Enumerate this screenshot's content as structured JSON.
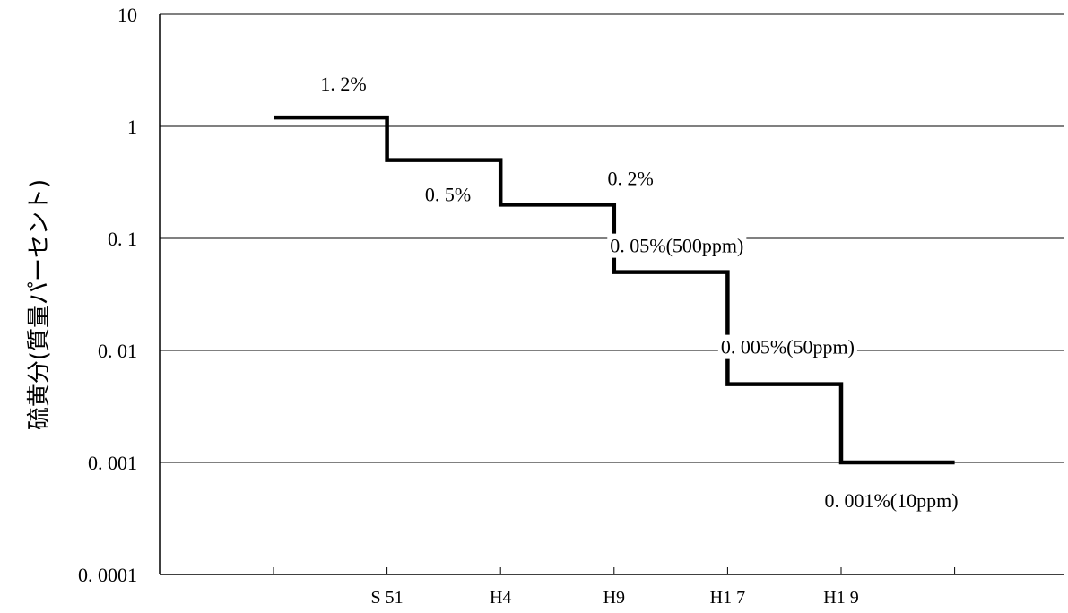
{
  "chart_data": {
    "type": "line",
    "step": "post",
    "title": "",
    "xlabel": "",
    "ylabel": "硫黄分(質量パーセント)",
    "yscale": "log",
    "ylim": [
      0.0001,
      10
    ],
    "y_ticks": [
      {
        "value": 10,
        "label": "10"
      },
      {
        "value": 1,
        "label": "1"
      },
      {
        "value": 0.1,
        "label": "0. 1"
      },
      {
        "value": 0.01,
        "label": "0. 01"
      },
      {
        "value": 0.001,
        "label": "0. 001"
      },
      {
        "value": 0.0001,
        "label": "0. 0001"
      }
    ],
    "grid": {
      "horizontal": true,
      "vertical": false
    },
    "categories": [
      "",
      "S51",
      "H4",
      "H9",
      "H17",
      "H19",
      ""
    ],
    "x_tick_labels": [
      "",
      "S 51",
      "H4",
      "H9",
      "H1 7",
      "H1 9",
      ""
    ],
    "series": [
      {
        "values": [
          1.2,
          0.5,
          0.2,
          0.05,
          0.005,
          0.001,
          0.001
        ],
        "color": "#000000"
      }
    ],
    "annotations": [
      {
        "text": "1. 2%",
        "value": 1.2
      },
      {
        "text": "0. 5%",
        "value": 0.5
      },
      {
        "text": "0. 2%",
        "value": 0.2
      },
      {
        "text": "0. 05%(500ppm)",
        "value": 0.05
      },
      {
        "text": "0. 005%(50ppm)",
        "value": 0.005
      },
      {
        "text": "0. 001%(10ppm)",
        "value": 0.001
      }
    ]
  }
}
